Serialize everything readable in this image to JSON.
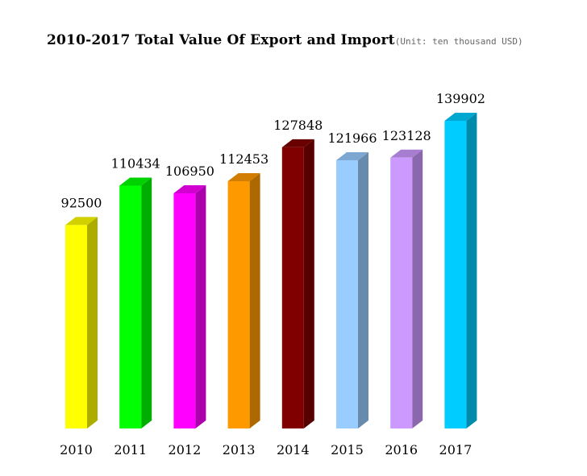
{
  "chart_data": {
    "type": "bar",
    "title": "2010-2017 Total Value Of Export and Import",
    "subtitle": "(Unit: ten thousand USD)",
    "categories": [
      "2010",
      "2011",
      "2012",
      "2013",
      "2014",
      "2015",
      "2016",
      "2017"
    ],
    "values": [
      92500,
      110434,
      106950,
      112453,
      127848,
      121966,
      123128,
      139902
    ],
    "colors": [
      "#ffff00",
      "#00ff00",
      "#ff00ff",
      "#ff9900",
      "#800000",
      "#99ccff",
      "#cc99ff",
      "#00ccff"
    ],
    "ylim": [
      0,
      140000
    ],
    "grid": false,
    "legend": "none",
    "bar_style": "3d"
  }
}
